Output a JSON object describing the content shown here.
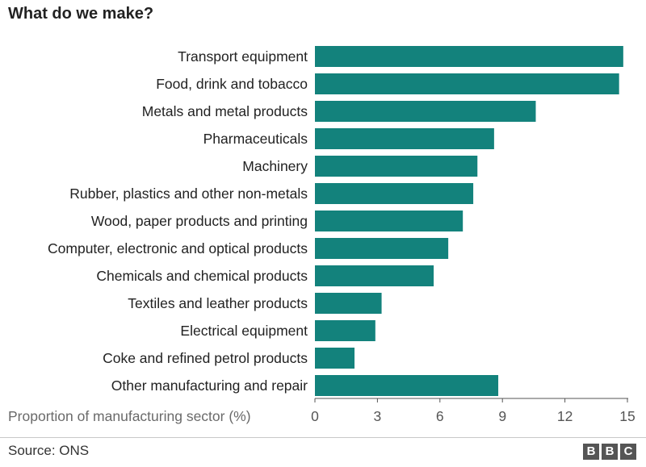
{
  "title": "What do we make?",
  "source": "Source: ONS",
  "logo": [
    "B",
    "B",
    "C"
  ],
  "colors": {
    "bar": "#13827c",
    "axis": "#555555"
  },
  "chart_data": {
    "type": "bar",
    "orientation": "horizontal",
    "categories": [
      "Transport equipment",
      "Food, drink and tobacco",
      "Metals and metal products",
      "Pharmaceuticals",
      "Machinery",
      "Rubber, plastics and other non-metals",
      "Wood, paper products and printing",
      "Computer, electronic and optical products",
      "Chemicals and chemical products",
      "Textiles and leather products",
      "Electrical equipment",
      "Coke and refined petrol products",
      "Other manufacturing and repair"
    ],
    "values": [
      14.8,
      14.6,
      10.6,
      8.6,
      7.8,
      7.6,
      7.1,
      6.4,
      5.7,
      3.2,
      2.9,
      1.9,
      8.8
    ],
    "xlabel": "Proportion of manufacturing sector (%)",
    "xlim": [
      0,
      15
    ],
    "xticks": [
      0,
      3,
      6,
      9,
      12,
      15
    ],
    "grid": false
  }
}
